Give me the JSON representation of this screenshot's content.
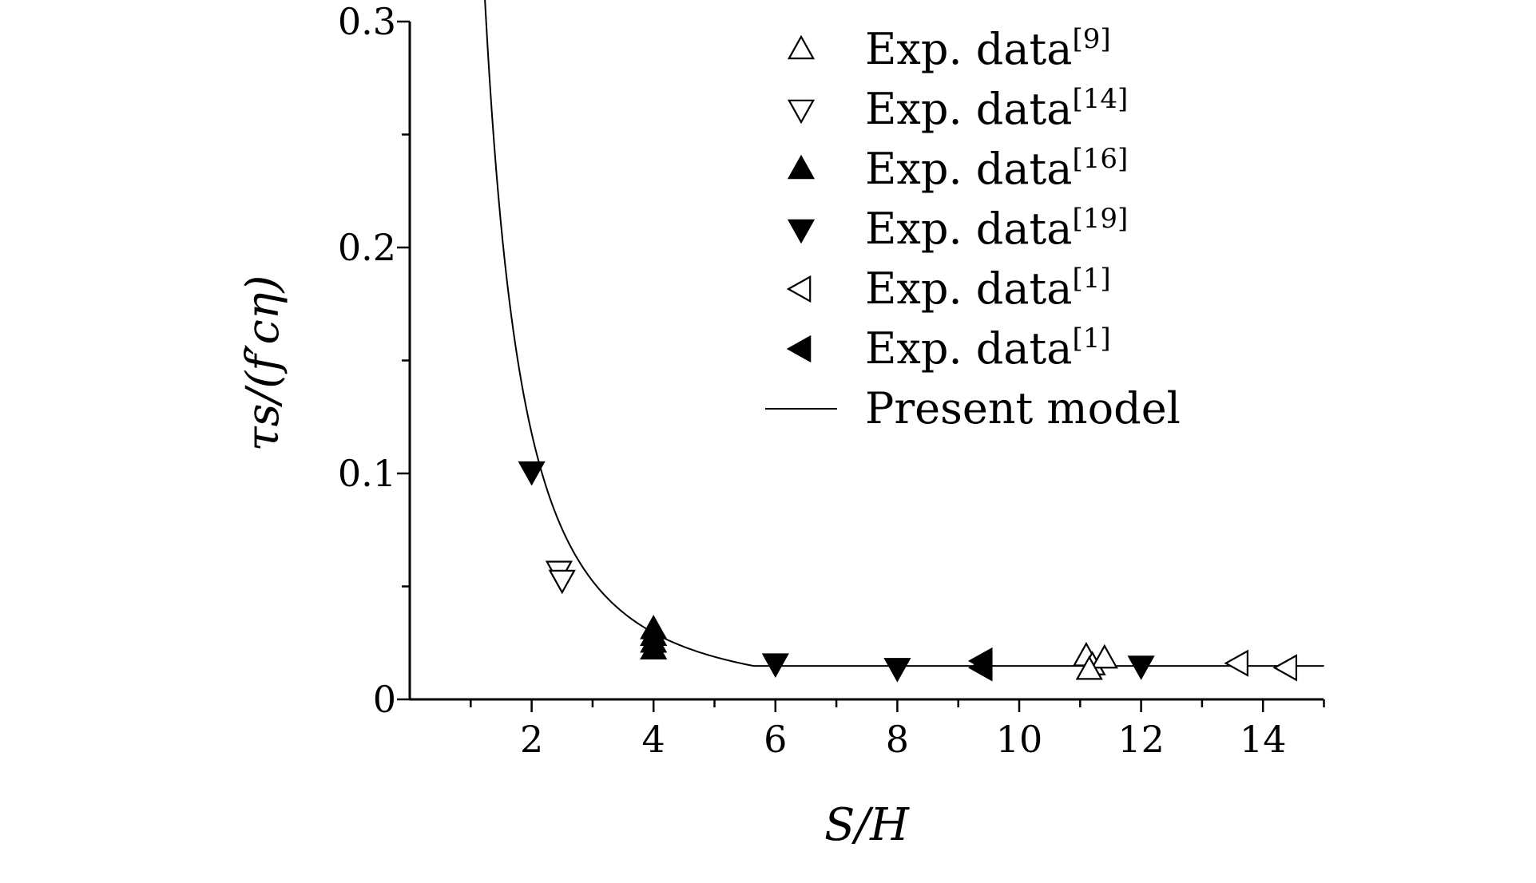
{
  "chart_data": {
    "type": "scatter",
    "title": "",
    "xlabel": "S/H",
    "ylabel": "τs/(f′cη)",
    "xlim": [
      0,
      15
    ],
    "ylim": [
      0,
      0.3
    ],
    "x_ticks": [
      2,
      4,
      6,
      8,
      10,
      12,
      14
    ],
    "x_tick_labels": [
      "2",
      "4",
      "6",
      "8",
      "10",
      "12",
      "14"
    ],
    "y_ticks": [
      0,
      0.1,
      0.2,
      0.3
    ],
    "y_tick_labels": [
      "0",
      "0.1",
      "0.2",
      "0.3"
    ],
    "grid": false,
    "legend_position": "top-right",
    "series": [
      {
        "name": "Exp. data",
        "ref": "[9]",
        "marker": "triangle-up",
        "filled": false,
        "points": [
          [
            11.1,
            0.019
          ],
          [
            11.2,
            0.015
          ],
          [
            11.4,
            0.018
          ],
          [
            11.15,
            0.013
          ]
        ]
      },
      {
        "name": "Exp. data",
        "ref": "[14]",
        "marker": "triangle-down",
        "filled": false,
        "points": [
          [
            2.45,
            0.057
          ],
          [
            2.5,
            0.053
          ]
        ]
      },
      {
        "name": "Exp. data",
        "ref": "[16]",
        "marker": "triangle-up",
        "filled": true,
        "points": [
          [
            4.0,
            0.031
          ],
          [
            4.0,
            0.028
          ],
          [
            4.0,
            0.025
          ],
          [
            4.0,
            0.022
          ]
        ]
      },
      {
        "name": "Exp. data",
        "ref": "[19]",
        "marker": "triangle-down",
        "filled": true,
        "points": [
          [
            2.0,
            0.101
          ],
          [
            6.0,
            0.016
          ],
          [
            8.0,
            0.014
          ],
          [
            12.0,
            0.015
          ]
        ]
      },
      {
        "name": "Exp. data",
        "ref": "[1]",
        "marker": "triangle-left",
        "filled": false,
        "points": [
          [
            13.6,
            0.016
          ],
          [
            14.4,
            0.014
          ]
        ]
      },
      {
        "name": "Exp. data",
        "ref": "[1]",
        "marker": "triangle-left",
        "filled": true,
        "points": [
          [
            9.4,
            0.017
          ],
          [
            9.4,
            0.014
          ]
        ]
      },
      {
        "name": "Present model",
        "ref": "",
        "marker": "line",
        "filled": false,
        "curve": {
          "form": "max(a/x^2, floor)",
          "a": 0.4712,
          "floor": 0.0148,
          "x_range": [
            1.0,
            15.0
          ]
        }
      }
    ]
  }
}
